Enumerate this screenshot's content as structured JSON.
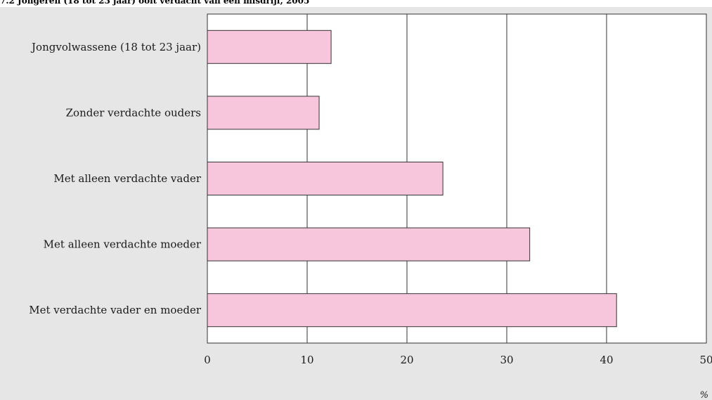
{
  "chart_data": {
    "type": "bar",
    "orientation": "horizontal",
    "title": "7.2 Jongeren (18 tot 23 jaar) ooit verdacht van een misdrijf, 2005",
    "categories": [
      "Jongvolwassene (18 tot 23 jaar)",
      "Zonder verdachte ouders",
      "Met alleen verdachte vader",
      "Met alleen verdachte moeder",
      "Met verdachte vader en moeder"
    ],
    "values": [
      12.4,
      11.2,
      23.6,
      32.3,
      41.0
    ],
    "xlabel": "%",
    "ylabel": "",
    "xlim": [
      0,
      50
    ],
    "xticks": [
      "0",
      "10",
      "20",
      "30",
      "40",
      "50"
    ],
    "grid": "vertical",
    "colors": {
      "bar": "#f7c6dc",
      "bar_stroke": "#333333",
      "plot_bg": "#ffffff",
      "panel_bg": "#e6e6e6"
    }
  }
}
